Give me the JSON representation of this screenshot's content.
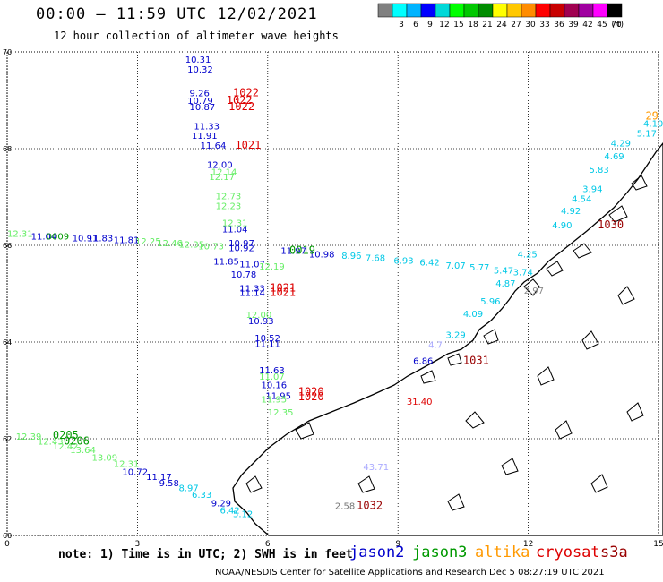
{
  "header": {
    "title": "00:00 – 11:59 UTC 12/02/2021",
    "subtitle": "12 hour collection of altimeter wave heights"
  },
  "legend": {
    "unit": "(ft)",
    "swatches": [
      {
        "label": "",
        "color": "#808080"
      },
      {
        "label": "3",
        "color": "#00ffff"
      },
      {
        "label": "6",
        "color": "#00b4ff"
      },
      {
        "label": "9",
        "color": "#0000ff"
      },
      {
        "label": "12",
        "color": "#00d8d8"
      },
      {
        "label": "15",
        "color": "#00ff00"
      },
      {
        "label": "18",
        "color": "#00c800"
      },
      {
        "label": "21",
        "color": "#008c00"
      },
      {
        "label": "24",
        "color": "#ffff00"
      },
      {
        "label": "27",
        "color": "#ffc800"
      },
      {
        "label": "30",
        "color": "#ff8c00"
      },
      {
        "label": "33",
        "color": "#ff0000"
      },
      {
        "label": "36",
        "color": "#c80000"
      },
      {
        "label": "39",
        "color": "#a00050"
      },
      {
        "label": "42",
        "color": "#a000a0"
      },
      {
        "label": "45",
        "color": "#ff00ff"
      },
      {
        "label": "70",
        "color": "#000000"
      }
    ]
  },
  "axes": {
    "x_ticks": [
      "0",
      "3",
      "6",
      "9",
      "12",
      "15"
    ],
    "y_ticks": [
      "60",
      "62",
      "64",
      "66",
      "68",
      "70"
    ],
    "x_range": [
      0,
      15
    ],
    "y_range": [
      60,
      70
    ],
    "grid": "dotted"
  },
  "colors": {
    "jason2": "#0000cc",
    "jason3": "#009900",
    "altika": "#ff9900",
    "cryosat": "#dd0000",
    "s3a": "#990000",
    "cyan": "#00c8e6",
    "lightgreen": "#66ee66"
  },
  "observations": [
    {
      "lon": 4.1,
      "lat": 69.78,
      "text": "10.31",
      "c": "jason2"
    },
    {
      "lon": 4.15,
      "lat": 69.57,
      "text": "10.32",
      "c": "jason2"
    },
    {
      "lon": 4.2,
      "lat": 69.08,
      "text": "9.26",
      "c": "jason2"
    },
    {
      "lon": 4.15,
      "lat": 68.93,
      "text": "10.79",
      "c": "jason2"
    },
    {
      "lon": 4.2,
      "lat": 68.8,
      "text": "10.87",
      "c": "jason2"
    },
    {
      "lon": 4.3,
      "lat": 68.4,
      "text": "11.33",
      "c": "jason2"
    },
    {
      "lon": 4.25,
      "lat": 68.2,
      "text": "11.91",
      "c": "jason2"
    },
    {
      "lon": 4.45,
      "lat": 68.0,
      "text": "11.64",
      "c": "jason2"
    },
    {
      "lon": 4.6,
      "lat": 67.6,
      "text": "12.00",
      "c": "jason2"
    },
    {
      "lon": 4.7,
      "lat": 67.45,
      "text": "12.14",
      "c": "lightgreen"
    },
    {
      "lon": 4.65,
      "lat": 67.35,
      "text": "12.17",
      "c": "lightgreen"
    },
    {
      "lon": 4.8,
      "lat": 66.95,
      "text": "12.73",
      "c": "lightgreen"
    },
    {
      "lon": 4.8,
      "lat": 66.75,
      "text": "12.23",
      "c": "lightgreen"
    },
    {
      "lon": 4.95,
      "lat": 66.4,
      "text": "12.31",
      "c": "lightgreen"
    },
    {
      "lon": 4.95,
      "lat": 66.27,
      "text": "11.04",
      "c": "jason2"
    },
    {
      "lon": 5.1,
      "lat": 65.98,
      "text": "10.97",
      "c": "jason2"
    },
    {
      "lon": 5.1,
      "lat": 65.88,
      "text": "10.92",
      "c": "jason2"
    },
    {
      "lon": 4.75,
      "lat": 65.6,
      "text": "11.85",
      "c": "jason2"
    },
    {
      "lon": 5.35,
      "lat": 65.55,
      "text": "11.07",
      "c": "jason2"
    },
    {
      "lon": 5.8,
      "lat": 65.5,
      "text": "12.19",
      "c": "lightgreen"
    },
    {
      "lon": 5.15,
      "lat": 65.33,
      "text": "10.78",
      "c": "jason2"
    },
    {
      "lon": 5.35,
      "lat": 65.05,
      "text": "11.33",
      "c": "jason2"
    },
    {
      "lon": 5.35,
      "lat": 64.95,
      "text": "11.14",
      "c": "jason2"
    },
    {
      "lon": 5.5,
      "lat": 64.5,
      "text": "12.00",
      "c": "lightgreen"
    },
    {
      "lon": 5.55,
      "lat": 64.37,
      "text": "10.93",
      "c": "jason2"
    },
    {
      "lon": 5.7,
      "lat": 64.02,
      "text": "10.52",
      "c": "jason2"
    },
    {
      "lon": 5.7,
      "lat": 63.9,
      "text": "11.11",
      "c": "jason2"
    },
    {
      "lon": 5.8,
      "lat": 63.35,
      "text": "11.63",
      "c": "jason2"
    },
    {
      "lon": 5.8,
      "lat": 63.22,
      "text": "11.07",
      "c": "lightgreen"
    },
    {
      "lon": 5.85,
      "lat": 63.05,
      "text": "10.16",
      "c": "jason2"
    },
    {
      "lon": 5.95,
      "lat": 62.82,
      "text": "11.95",
      "c": "jason2"
    },
    {
      "lon": 5.85,
      "lat": 62.75,
      "text": "11.95",
      "c": "lightgreen"
    },
    {
      "lon": 6.0,
      "lat": 62.48,
      "text": "12.35",
      "c": "lightgreen"
    },
    {
      "lon": 0.0,
      "lat": 66.18,
      "text": "12.31",
      "c": "lightgreen"
    },
    {
      "lon": 0.55,
      "lat": 66.12,
      "text": "11.04",
      "c": "jason2"
    },
    {
      "lon": 0.9,
      "lat": 66.12,
      "text": "0009",
      "c": "jason3"
    },
    {
      "lon": 1.5,
      "lat": 66.08,
      "text": "10.91",
      "c": "jason2"
    },
    {
      "lon": 1.85,
      "lat": 66.08,
      "text": "11.83",
      "c": "jason2"
    },
    {
      "lon": 2.45,
      "lat": 66.05,
      "text": "11.81",
      "c": "jason2"
    },
    {
      "lon": 2.95,
      "lat": 66.02,
      "text": "12.25",
      "c": "lightgreen"
    },
    {
      "lon": 3.45,
      "lat": 65.98,
      "text": "12.46",
      "c": "lightgreen"
    },
    {
      "lon": 3.95,
      "lat": 65.95,
      "text": "12.35",
      "c": "lightgreen"
    },
    {
      "lon": 4.4,
      "lat": 65.92,
      "text": "10.73",
      "c": "lightgreen"
    },
    {
      "lon": 6.3,
      "lat": 65.82,
      "text": "11.97",
      "c": "jason2"
    },
    {
      "lon": 6.95,
      "lat": 65.75,
      "text": "10.98",
      "c": "jason2"
    },
    {
      "lon": 7.7,
      "lat": 65.72,
      "text": "8.96",
      "c": "cyan"
    },
    {
      "lon": 8.25,
      "lat": 65.68,
      "text": "7.68",
      "c": "cyan"
    },
    {
      "lon": 8.9,
      "lat": 65.62,
      "text": "6.93",
      "c": "cyan"
    },
    {
      "lon": 9.5,
      "lat": 65.58,
      "text": "6.42",
      "c": "cyan"
    },
    {
      "lon": 10.1,
      "lat": 65.52,
      "text": "7.07",
      "c": "cyan"
    },
    {
      "lon": 10.65,
      "lat": 65.48,
      "text": "5.77",
      "c": "cyan"
    },
    {
      "lon": 11.2,
      "lat": 65.42,
      "text": "5.47",
      "c": "cyan"
    },
    {
      "lon": 11.65,
      "lat": 65.38,
      "text": "3.74",
      "c": "cyan"
    },
    {
      "lon": 11.25,
      "lat": 65.15,
      "text": "4.87",
      "c": "cyan"
    },
    {
      "lon": 11.75,
      "lat": 65.75,
      "text": "4.25",
      "c": "cyan"
    },
    {
      "lon": 11.9,
      "lat": 65.0,
      "text": "2.97",
      "c": "#888888"
    },
    {
      "lon": 12.55,
      "lat": 66.35,
      "text": "4.90",
      "c": "cyan"
    },
    {
      "lon": 12.75,
      "lat": 66.65,
      "text": "4.92",
      "c": "cyan"
    },
    {
      "lon": 13.0,
      "lat": 66.9,
      "text": "4.54",
      "c": "cyan"
    },
    {
      "lon": 13.25,
      "lat": 67.1,
      "text": "3.94",
      "c": "cyan"
    },
    {
      "lon": 13.4,
      "lat": 67.5,
      "text": "5.83",
      "c": "cyan"
    },
    {
      "lon": 13.75,
      "lat": 67.78,
      "text": "4.69",
      "c": "cyan"
    },
    {
      "lon": 13.9,
      "lat": 68.05,
      "text": "4.29",
      "c": "cyan"
    },
    {
      "lon": 14.5,
      "lat": 68.25,
      "text": "5.17",
      "c": "cyan"
    },
    {
      "lon": 14.65,
      "lat": 68.45,
      "text": "4.10",
      "c": "cyan"
    },
    {
      "lon": 10.9,
      "lat": 64.78,
      "text": "5.96",
      "c": "cyan"
    },
    {
      "lon": 10.5,
      "lat": 64.52,
      "text": "4.09",
      "c": "cyan"
    },
    {
      "lon": 10.1,
      "lat": 64.08,
      "text": "3.29",
      "c": "cyan"
    },
    {
      "lon": 9.7,
      "lat": 63.88,
      "text": "4.7",
      "c": "#aaaaff"
    },
    {
      "lon": 9.35,
      "lat": 63.55,
      "text": "6.86",
      "c": "jason2"
    },
    {
      "lon": 9.2,
      "lat": 62.7,
      "text": "31.40",
      "c": "cryosat"
    },
    {
      "lon": 8.2,
      "lat": 61.35,
      "text": "43.71",
      "c": "#aaaaff"
    },
    {
      "lon": 7.55,
      "lat": 60.55,
      "text": "2.58",
      "c": "#777777"
    },
    {
      "lon": 0.2,
      "lat": 61.98,
      "text": "12.39",
      "c": "lightgreen"
    },
    {
      "lon": 0.7,
      "lat": 61.88,
      "text": "12.43",
      "c": "lightgreen"
    },
    {
      "lon": 1.05,
      "lat": 61.78,
      "text": "12.42",
      "c": "lightgreen"
    },
    {
      "lon": 1.45,
      "lat": 61.7,
      "text": "13.64",
      "c": "lightgreen"
    },
    {
      "lon": 1.95,
      "lat": 61.55,
      "text": "13.09",
      "c": "lightgreen"
    },
    {
      "lon": 2.45,
      "lat": 61.42,
      "text": "12.31",
      "c": "lightgreen"
    },
    {
      "lon": 2.65,
      "lat": 61.25,
      "text": "10.72",
      "c": "jason2"
    },
    {
      "lon": 3.2,
      "lat": 61.15,
      "text": "11.17",
      "c": "jason2"
    },
    {
      "lon": 3.5,
      "lat": 61.02,
      "text": "9.58",
      "c": "jason2"
    },
    {
      "lon": 3.95,
      "lat": 60.92,
      "text": "8.97",
      "c": "cyan"
    },
    {
      "lon": 4.25,
      "lat": 60.78,
      "text": "6.33",
      "c": "cyan"
    },
    {
      "lon": 4.7,
      "lat": 60.6,
      "text": "9.29",
      "c": "jason2"
    },
    {
      "lon": 4.9,
      "lat": 60.45,
      "text": "6.42",
      "c": "cyan"
    },
    {
      "lon": 5.2,
      "lat": 60.38,
      "text": "5.12",
      "c": "cyan"
    }
  ],
  "time_labels": [
    {
      "lon": 5.2,
      "lat": 69.08,
      "text": "1022",
      "c": "cryosat"
    },
    {
      "lon": 5.05,
      "lat": 68.93,
      "text": "1022",
      "c": "cryosat"
    },
    {
      "lon": 5.1,
      "lat": 68.8,
      "text": "1022",
      "c": "cryosat"
    },
    {
      "lon": 5.25,
      "lat": 68.0,
      "text": "1021",
      "c": "cryosat"
    },
    {
      "lon": 6.5,
      "lat": 65.82,
      "text": "0019",
      "c": "jason3"
    },
    {
      "lon": 6.05,
      "lat": 65.05,
      "text": "1021",
      "c": "cryosat"
    },
    {
      "lon": 6.05,
      "lat": 64.95,
      "text": "1021",
      "c": "cryosat"
    },
    {
      "lon": 6.7,
      "lat": 62.9,
      "text": "1020",
      "c": "cryosat"
    },
    {
      "lon": 6.7,
      "lat": 62.8,
      "text": "1020",
      "c": "cryosat"
    },
    {
      "lon": 1.05,
      "lat": 62.0,
      "text": "0205",
      "c": "jason3"
    },
    {
      "lon": 1.3,
      "lat": 61.88,
      "text": "0206",
      "c": "jason3"
    },
    {
      "lon": 13.6,
      "lat": 66.35,
      "text": "1030",
      "c": "s3a"
    },
    {
      "lon": 10.5,
      "lat": 63.55,
      "text": "1031",
      "c": "s3a"
    },
    {
      "lon": 8.05,
      "lat": 60.55,
      "text": "1032",
      "c": "s3a"
    },
    {
      "lon": 14.7,
      "lat": 68.6,
      "text": "29",
      "c": "altika"
    }
  ],
  "footer": {
    "note": "note: 1) Time is in UTC; 2) SWH is in feet",
    "satellites": [
      {
        "name": "jason2",
        "color": "#0000cc"
      },
      {
        "name": "jason3",
        "color": "#009900"
      },
      {
        "name": "altika",
        "color": "#ff9900"
      },
      {
        "name": "cryosat",
        "color": "#dd0000"
      },
      {
        "name": "s3a",
        "color": "#990000"
      }
    ],
    "credit": "NOAA/NESDIS Center for Satellite Applications and Research    Dec  5 08:27:19 UTC 2021"
  }
}
